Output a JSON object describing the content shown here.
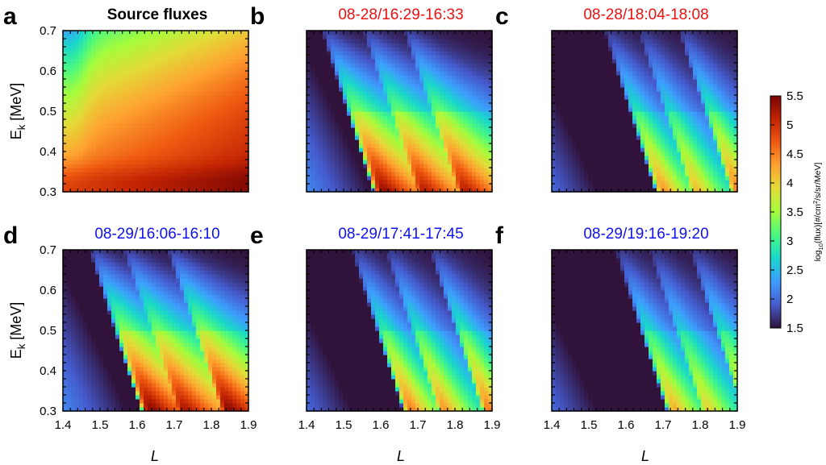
{
  "chart_data": {
    "type": "heatmap",
    "x_range": [
      1.4,
      1.9
    ],
    "y_range": [
      0.3,
      0.7
    ],
    "x_ticks": [
      "1.4",
      "1.5",
      "1.6",
      "1.7",
      "1.8",
      "1.9"
    ],
    "y_ticks": [
      "0.3",
      "0.4",
      "0.5",
      "0.6",
      "0.7"
    ],
    "ylabel_main": "E",
    "ylabel_sub": "k",
    "ylabel_unit": " [MeV]",
    "xlabel": "L",
    "colorbar": {
      "label_prefix": "log",
      "label_sub": "10",
      "label_mid": "(flux)[#/cm",
      "label_sup": "2",
      "label_end": "/s/sr/MeV]",
      "min": 1.5,
      "max": 5.5,
      "ticks": [
        "1.5",
        "2",
        "2.5",
        "3",
        "3.5",
        "4",
        "4.5",
        "5",
        "5.5"
      ]
    },
    "panels": [
      {
        "letter": "a",
        "title": "Source fluxes",
        "title_color": "#000000",
        "kind": "source"
      },
      {
        "letter": "b",
        "title": "08-28/16:29-16:33",
        "title_color": "#ee1111",
        "kind": "ridges",
        "base": 2.2,
        "slope": 1.0,
        "ridges": [
          [
            1.44,
            4.1
          ],
          [
            1.55,
            3.9
          ],
          [
            1.66,
            3.9
          ]
        ]
      },
      {
        "letter": "c",
        "title": "08-28/18:04-18:08",
        "title_color": "#ee1111",
        "kind": "ridges",
        "base": 2.0,
        "slope": 0.55,
        "ridges": [
          [
            1.54,
            3.4
          ],
          [
            1.63,
            3.1
          ],
          [
            1.74,
            3.6
          ]
        ]
      },
      {
        "letter": "d",
        "title": "08-29/16:06-16:10",
        "title_color": "#1111ee",
        "kind": "ridges",
        "base": 2.2,
        "slope": 1.0,
        "ridges": [
          [
            1.47,
            4.2
          ],
          [
            1.56,
            4.0
          ],
          [
            1.68,
            4.2
          ]
        ]
      },
      {
        "letter": "e",
        "title": "08-29/17:41-17:45",
        "title_color": "#1111ee",
        "kind": "ridges",
        "base": 2.0,
        "slope": 0.55,
        "ridges": [
          [
            1.52,
            3.6
          ],
          [
            1.61,
            3.4
          ],
          [
            1.73,
            3.6
          ]
        ]
      },
      {
        "letter": "f",
        "title": "08-29/19:16-19:20",
        "title_color": "#1111ee",
        "kind": "ridges",
        "base": 2.0,
        "slope": 0.55,
        "ridges": [
          [
            1.57,
            3.2
          ],
          [
            1.66,
            2.9
          ],
          [
            1.77,
            3.2
          ]
        ]
      }
    ]
  }
}
